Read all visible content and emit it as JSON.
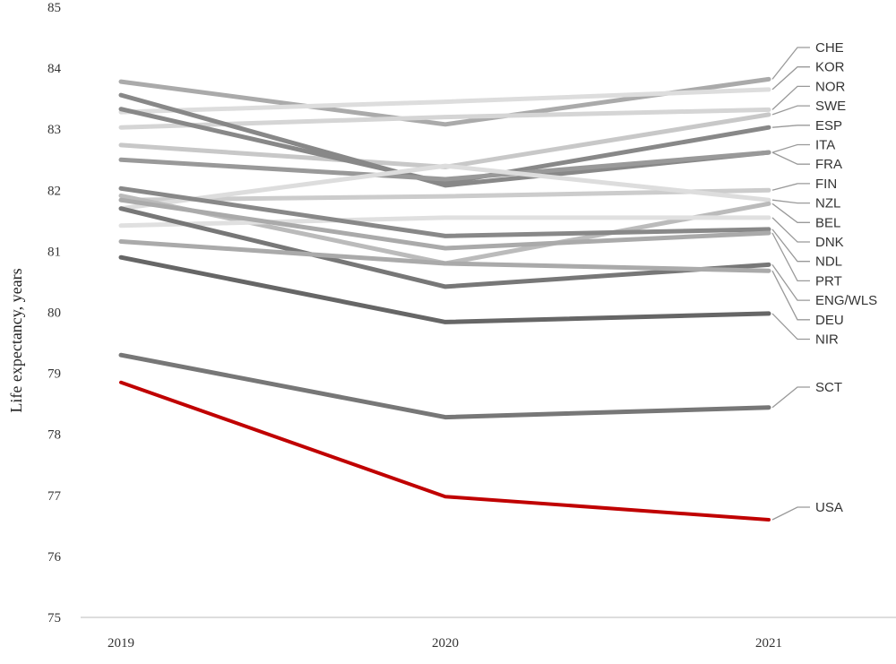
{
  "chart_data": {
    "type": "line",
    "title": "",
    "xlabel": "",
    "ylabel": "Life expectancy,  years",
    "x": [
      "2019",
      "2020",
      "2021"
    ],
    "ylim": [
      75,
      85
    ],
    "yticks": [
      "75",
      "76",
      "77",
      "78",
      "79",
      "80",
      "81",
      "82",
      "83",
      "84",
      "85"
    ],
    "grid": false,
    "legend": "direct labels at right",
    "series": [
      {
        "name": "CHE",
        "values": [
          83.78,
          83.08,
          83.82
        ],
        "color": "#aaaaaa"
      },
      {
        "name": "KOR",
        "values": [
          83.28,
          83.45,
          83.65
        ],
        "color": "#dddddd"
      },
      {
        "name": "NOR",
        "values": [
          83.03,
          83.2,
          83.32
        ],
        "color": "#d5d5d5"
      },
      {
        "name": "SWE",
        "values": [
          82.74,
          82.38,
          83.24
        ],
        "color": "#c8c8c8"
      },
      {
        "name": "ESP",
        "values": [
          83.33,
          82.12,
          83.03
        ],
        "color": "#888888"
      },
      {
        "name": "ITA",
        "values": [
          83.56,
          82.08,
          82.62
        ],
        "color": "#888888"
      },
      {
        "name": "FRA",
        "values": [
          82.5,
          82.18,
          82.62
        ],
        "color": "#999999"
      },
      {
        "name": "FIN",
        "values": [
          81.84,
          81.9,
          82.0
        ],
        "color": "#cccccc"
      },
      {
        "name": "NZL",
        "values": [
          81.7,
          82.4,
          81.84
        ],
        "color": "#dddddd"
      },
      {
        "name": "BEL",
        "values": [
          81.91,
          80.8,
          81.78
        ],
        "color": "#bbbbbb"
      },
      {
        "name": "DNK",
        "values": [
          81.42,
          81.55,
          81.55
        ],
        "color": "#e0e0e0"
      },
      {
        "name": "NDL",
        "values": [
          82.03,
          81.25,
          81.36
        ],
        "color": "#888888"
      },
      {
        "name": "PRT",
        "values": [
          81.84,
          81.05,
          81.3
        ],
        "color": "#aaaaaa"
      },
      {
        "name": "ENG/WLS",
        "values": [
          81.7,
          80.42,
          80.78
        ],
        "color": "#777777"
      },
      {
        "name": "DEU",
        "values": [
          81.16,
          80.8,
          80.68
        ],
        "color": "#aaaaaa"
      },
      {
        "name": "NIR",
        "values": [
          80.9,
          79.84,
          79.98
        ],
        "color": "#666666"
      },
      {
        "name": "SCT",
        "values": [
          79.3,
          78.28,
          78.44
        ],
        "color": "#777777"
      },
      {
        "name": "USA",
        "values": [
          78.85,
          76.98,
          76.6
        ],
        "color": "#c00000"
      }
    ]
  }
}
